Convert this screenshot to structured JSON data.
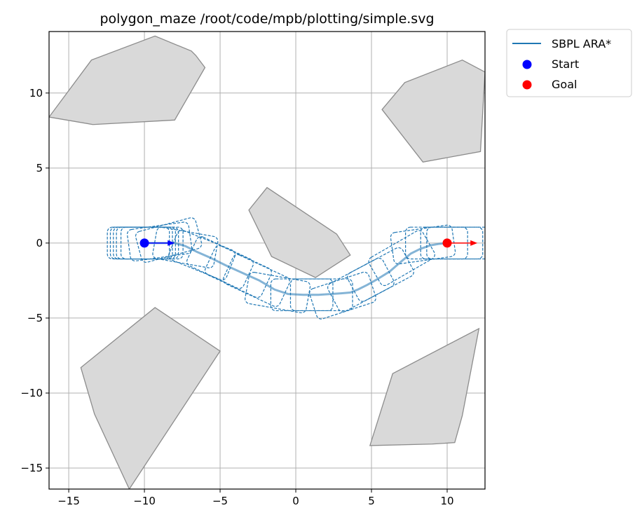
{
  "chart_data": {
    "type": "scatter",
    "title": "polygon_maze /root/code/mpb/plotting/simple.svg",
    "xlabel": "",
    "ylabel": "",
    "xlim": [
      -16.3,
      12.5
    ],
    "ylim": [
      -16.4,
      14.1
    ],
    "xticks": [
      -15,
      -10,
      -5,
      0,
      5,
      10
    ],
    "xtick_labels": [
      "−15",
      "−10",
      "−5",
      "0",
      "5",
      "10"
    ],
    "yticks": [
      -15,
      -10,
      -5,
      0,
      5,
      10
    ],
    "ytick_labels": [
      "−15",
      "−10",
      "−5",
      "0",
      "5",
      "10"
    ],
    "grid": true,
    "legend_placement": "outside-top-right",
    "obstacles": [
      [
        [
          -16.3,
          8.4
        ],
        [
          -13.5,
          12.2
        ],
        [
          -9.3,
          13.8
        ],
        [
          -6.9,
          12.8
        ],
        [
          -6.6,
          12.5
        ],
        [
          -6.0,
          11.7
        ],
        [
          -8.0,
          8.2
        ],
        [
          -13.4,
          7.9
        ]
      ],
      [
        [
          5.7,
          8.9
        ],
        [
          7.2,
          10.7
        ],
        [
          11.0,
          12.2
        ],
        [
          12.5,
          11.4
        ],
        [
          12.2,
          6.1
        ],
        [
          8.4,
          5.4
        ]
      ],
      [
        [
          -3.1,
          2.2
        ],
        [
          -1.9,
          3.7
        ],
        [
          2.7,
          0.6
        ],
        [
          3.6,
          -0.8
        ],
        [
          1.3,
          -2.3
        ],
        [
          -1.6,
          -0.9
        ]
      ],
      [
        [
          -14.2,
          -8.3
        ],
        [
          -9.3,
          -4.3
        ],
        [
          -5.0,
          -7.2
        ],
        [
          -11.0,
          -16.4
        ],
        [
          -13.3,
          -11.4
        ]
      ],
      [
        [
          4.9,
          -13.5
        ],
        [
          6.4,
          -8.7
        ],
        [
          12.1,
          -5.7
        ],
        [
          11.0,
          -11.5
        ],
        [
          10.5,
          -13.3
        ],
        [
          9.0,
          -13.4
        ]
      ]
    ],
    "series": [
      {
        "name": "SBPL ARA*",
        "color": "#1f77b4",
        "x": [
          -10.0,
          -9.0,
          -8.0,
          -7.3,
          -6.5,
          -5.6,
          -4.6,
          -3.5,
          -2.4,
          -1.4,
          -0.5,
          0.5,
          1.5,
          2.3,
          3.0,
          3.6,
          4.1,
          4.7,
          5.4,
          6.2,
          7.0,
          7.6,
          8.2,
          8.9,
          9.5,
          10.0
        ],
        "y": [
          0.0,
          0.0,
          0.0,
          -0.2,
          -0.6,
          -1.0,
          -1.5,
          -2.0,
          -2.5,
          -3.1,
          -3.4,
          -3.45,
          -3.45,
          -3.4,
          -3.35,
          -3.3,
          -3.1,
          -2.8,
          -2.4,
          -1.9,
          -1.2,
          -0.7,
          -0.4,
          -0.15,
          -0.05,
          0.0
        ]
      }
    ],
    "footprints": [
      {
        "cx": -10.4,
        "cy": 0.0,
        "a": 0
      },
      {
        "cx": -10.2,
        "cy": 0.0,
        "a": 0
      },
      {
        "cx": -10.0,
        "cy": 0.0,
        "a": 0
      },
      {
        "cx": -9.8,
        "cy": 0.0,
        "a": 0
      },
      {
        "cx": -9.5,
        "cy": 0.0,
        "a": 0
      },
      {
        "cx": -9.0,
        "cy": 0.1,
        "a": 8
      },
      {
        "cx": -8.4,
        "cy": 0.2,
        "a": 15
      },
      {
        "cx": -7.3,
        "cy": -0.3,
        "a": -10
      },
      {
        "cx": -6.2,
        "cy": -0.8,
        "a": -22
      },
      {
        "cx": -5.0,
        "cy": -1.3,
        "a": -25
      },
      {
        "cx": -3.8,
        "cy": -1.9,
        "a": -25
      },
      {
        "cx": -2.6,
        "cy": -2.5,
        "a": -25
      },
      {
        "cx": -1.2,
        "cy": -3.3,
        "a": -10
      },
      {
        "cx": 0.4,
        "cy": -3.45,
        "a": 0
      },
      {
        "cx": 1.7,
        "cy": -3.45,
        "a": 0
      },
      {
        "cx": 3.1,
        "cy": -3.5,
        "a": 18
      },
      {
        "cx": 4.3,
        "cy": -2.8,
        "a": 28
      },
      {
        "cx": 5.6,
        "cy": -2.1,
        "a": 28
      },
      {
        "cx": 7.0,
        "cy": -1.0,
        "a": 30
      },
      {
        "cx": 8.4,
        "cy": -0.1,
        "a": 8
      },
      {
        "cx": 9.3,
        "cy": 0.0,
        "a": 0
      },
      {
        "cx": 10.3,
        "cy": 0.0,
        "a": 0
      },
      {
        "cx": 10.7,
        "cy": 0.0,
        "a": 0
      }
    ],
    "start": {
      "x": -10,
      "y": 0,
      "label": "Start",
      "color": "#0000ff",
      "arrow_dx": 2.0,
      "arrow_dy": 0
    },
    "goal": {
      "x": 10,
      "y": 0,
      "label": "Goal",
      "color": "#ff0000",
      "arrow_dx": 2.0,
      "arrow_dy": 0
    }
  }
}
